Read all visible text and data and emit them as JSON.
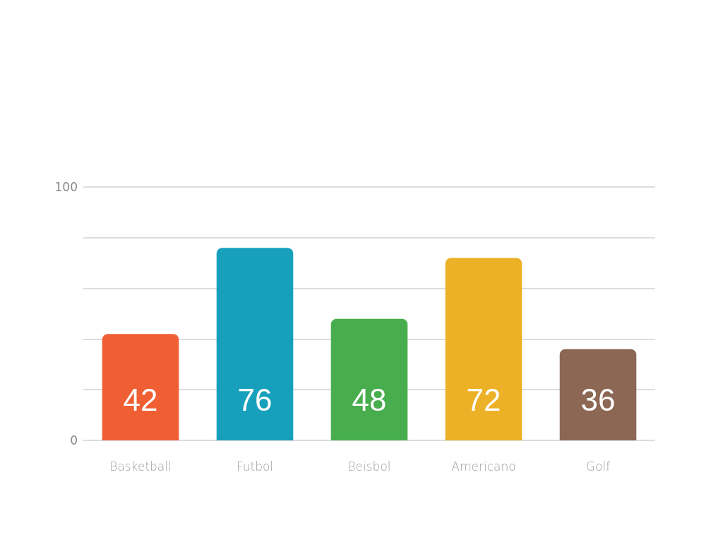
{
  "chart_data": {
    "type": "bar",
    "categories": [
      "Basketball",
      "Futbol",
      "Beisbol",
      "Americano",
      "Golf"
    ],
    "values": [
      42,
      76,
      48,
      72,
      36
    ],
    "colors": [
      "#f05f34",
      "#17a0bb",
      "#48ad4d",
      "#ecb127",
      "#8b6754"
    ],
    "ylim": [
      0,
      100
    ],
    "yticks": [
      0,
      {
        "value": 20,
        "label": null
      },
      {
        "value": 40,
        "label": null
      },
      {
        "value": 60,
        "label": null
      },
      {
        "value": 80,
        "label": null
      },
      100
    ],
    "grid": "y",
    "data_labels": true
  }
}
